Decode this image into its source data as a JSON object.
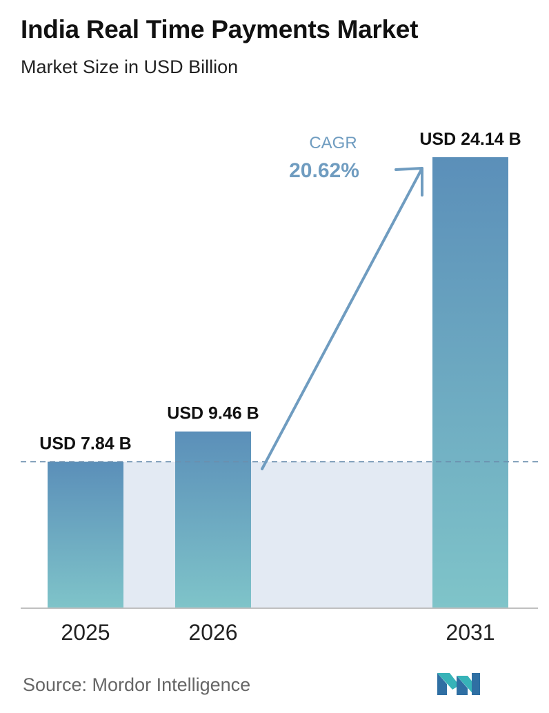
{
  "header": {
    "title": "India Real Time Payments Market",
    "subtitle": "Market Size in USD Billion"
  },
  "chart_data": {
    "type": "bar",
    "categories": [
      "2025",
      "2026",
      "2031"
    ],
    "values": [
      7.84,
      9.46,
      24.14
    ],
    "value_labels": [
      "USD 7.84 B",
      "USD 9.46 B",
      "USD 24.14 B"
    ],
    "title": "India Real Time Payments Market",
    "subtitle": "Market Size in USD Billion",
    "unit": "USD Billion",
    "ylim": [
      0,
      24.14
    ],
    "grid": false,
    "reference_line_value": 7.84,
    "annotation": {
      "label": "CAGR",
      "value": "20.62%"
    },
    "colors": {
      "bar_top": "#5b8fb9",
      "bar_bottom": "#7fc4c9",
      "band": "#e3eaf3",
      "reference_line": "#6b8fae",
      "arrow": "#6f9cc0",
      "cagr_text": "#6f9cc0",
      "axis": "#bfbfbf"
    }
  },
  "footer": {
    "source": "Source:  Mordor Intelligence",
    "logo_icon": "mordor-intelligence-logo-icon"
  }
}
